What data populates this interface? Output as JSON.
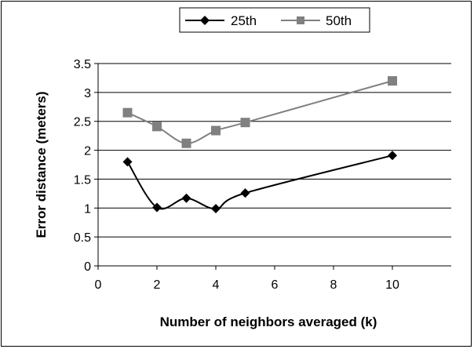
{
  "chart_data": {
    "type": "line",
    "xlabel": "Number of neighbors averaged (k)",
    "ylabel": "Error distance (meters)",
    "xlim": [
      0,
      12
    ],
    "ylim": [
      0,
      3.5
    ],
    "xticks": [
      "0",
      "2",
      "4",
      "6",
      "8",
      "10"
    ],
    "yticks": [
      "0",
      "0.5",
      "1",
      "1.5",
      "2",
      "2.5",
      "3",
      "3.5"
    ],
    "grid": "horizontal",
    "legend_position": "top",
    "series": [
      {
        "name": "25th",
        "color": "#000000",
        "marker": "diamond",
        "x": [
          1,
          2,
          3,
          4,
          5,
          10
        ],
        "y": [
          1.8,
          1.01,
          1.17,
          0.99,
          1.26,
          1.91
        ]
      },
      {
        "name": "50th",
        "color": "#808080",
        "marker": "square",
        "x": [
          1,
          2,
          3,
          4,
          5,
          10
        ],
        "y": [
          2.65,
          2.41,
          2.12,
          2.34,
          2.48,
          3.2
        ]
      }
    ]
  }
}
